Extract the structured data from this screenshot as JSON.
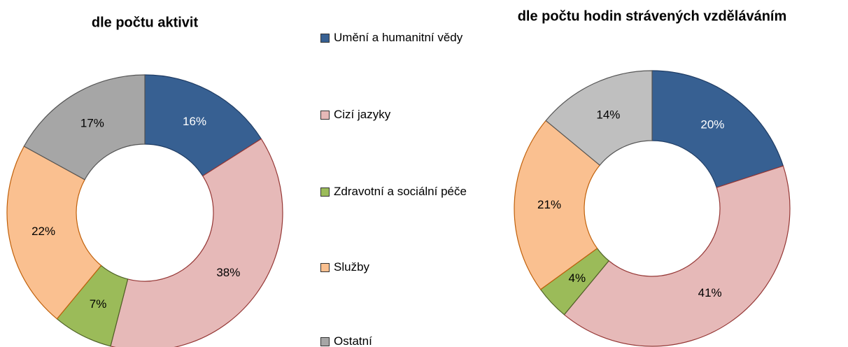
{
  "chart_data": [
    {
      "type": "pie",
      "title": "dle počtu aktivit",
      "categories": [
        "Umění a humanitní vědy",
        "Cizí jazyky",
        "Zdravotní a sociální péče",
        "Služby",
        "Ostatní"
      ],
      "values": [
        16,
        38,
        7,
        22,
        17
      ],
      "value_labels": [
        "16%",
        "38%",
        "7%",
        "22%",
        "17%"
      ],
      "colors": [
        "#376092",
        "#e6b9b8",
        "#9bbb59",
        "#fac090",
        "#a6a6a6"
      ]
    },
    {
      "type": "pie",
      "title": "dle počtu hodin strávených vzděláváním",
      "categories": [
        "Umění a humanitní vědy",
        "Cizí jazyky",
        "Zdravotní a sociální péče",
        "Služby",
        "Ostatní"
      ],
      "values": [
        20,
        41,
        4,
        21,
        14
      ],
      "value_labels": [
        "20%",
        "41%",
        "4%",
        "21%",
        "14%"
      ],
      "colors": [
        "#376092",
        "#e6b9b8",
        "#9bbb59",
        "#fac090",
        "#bfbfbf"
      ]
    }
  ]
}
